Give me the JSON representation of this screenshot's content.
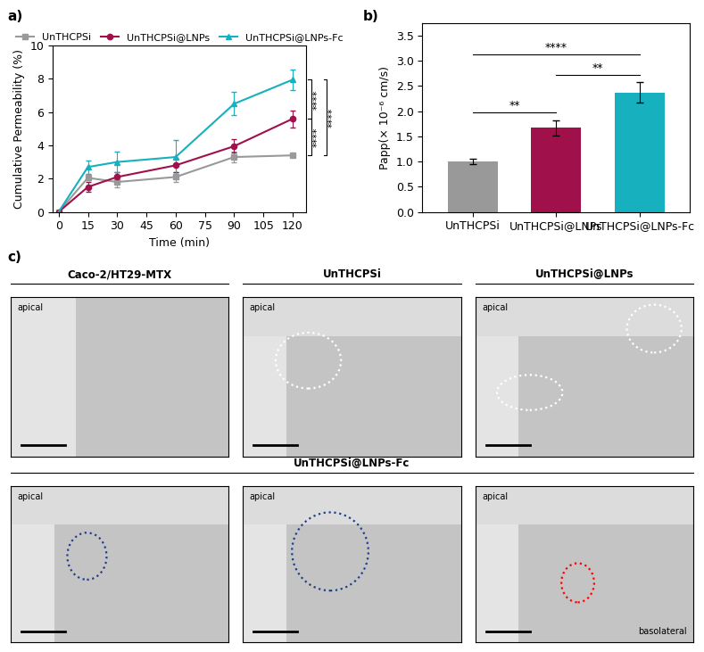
{
  "chart_data": [
    {
      "type": "line",
      "panel_label": "a)",
      "x_label": "Time (min)",
      "y_label": "Cumulative Permeability (%)",
      "x": [
        0,
        15,
        30,
        60,
        90,
        120
      ],
      "xlim": [
        -3,
        127
      ],
      "xticks": [
        0,
        15,
        30,
        45,
        60,
        75,
        90,
        105,
        120
      ],
      "ylim": [
        0,
        10
      ],
      "yticks": [
        0,
        2,
        4,
        6,
        8,
        10
      ],
      "grid": false,
      "legend": "upper center",
      "series": [
        {
          "name": "UnTHCPSi",
          "color": "#999999",
          "marker": "square",
          "values": [
            0,
            2.05,
            1.8,
            2.1,
            3.3,
            3.4
          ],
          "errors": [
            0,
            0.15,
            0.3,
            0.3,
            0.3,
            0.1
          ]
        },
        {
          "name": "UnTHCPSi@LNPs",
          "color": "#a0104a",
          "marker": "circle",
          "values": [
            0,
            1.5,
            2.1,
            2.8,
            3.95,
            5.6
          ],
          "errors": [
            0,
            0.3,
            0.3,
            0.4,
            0.4,
            0.5
          ]
        },
        {
          "name": "UnTHCPSi@LNPs-Fc",
          "color": "#17b0bf",
          "marker": "triangle",
          "values": [
            0,
            2.7,
            3.0,
            3.3,
            6.5,
            7.95
          ],
          "errors": [
            0,
            0.4,
            0.6,
            1.0,
            0.7,
            0.6
          ]
        }
      ],
      "annotations": [
        {
          "text": "****",
          "series": [
            "UnTHCPSi@LNPs",
            "UnTHCPSi@LNPs-Fc"
          ]
        },
        {
          "text": "****",
          "series": [
            "UnTHCPSi",
            "UnTHCPSi@LNPs"
          ]
        },
        {
          "text": "****",
          "series": [
            "UnTHCPSi",
            "UnTHCPSi@LNPs-Fc"
          ]
        }
      ]
    },
    {
      "type": "bar",
      "panel_label": "b)",
      "y_label": "Papp(× 10⁻⁶ cm/s)",
      "categories": [
        "UnTHCPSi",
        "UnTHCPSi@LNPs",
        "UnTHCPSi@LNPs-Fc"
      ],
      "values": [
        1.0,
        1.67,
        2.37
      ],
      "errors": [
        0.05,
        0.15,
        0.2
      ],
      "colors": [
        "#999999",
        "#a0104a",
        "#17b0bf"
      ],
      "ylim": [
        0,
        3.75
      ],
      "yticks": [
        0.0,
        0.5,
        1.0,
        1.5,
        2.0,
        2.5,
        3.0,
        3.5
      ],
      "grid": false,
      "annotations": [
        {
          "text": "**",
          "categories": [
            "UnTHCPSi",
            "UnTHCPSi@LNPs"
          ]
        },
        {
          "text": "**",
          "categories": [
            "UnTHCPSi@LNPs",
            "UnTHCPSi@LNPs-Fc"
          ]
        },
        {
          "text": "****",
          "categories": [
            "UnTHCPSi",
            "UnTHCPSi@LNPs-Fc"
          ]
        }
      ]
    }
  ],
  "micrographs": {
    "panel_label": "c)",
    "groups": [
      {
        "title": "Caco-2/HT29-MTX",
        "images": [
          [
            "apical"
          ]
        ]
      },
      {
        "title": "UnTHCPSi",
        "images": [
          [
            "apical"
          ]
        ]
      },
      {
        "title": "UnTHCPSi@LNPs",
        "images": [
          [
            "apical"
          ]
        ]
      },
      {
        "title": "UnTHCPSi@LNPs-Fc",
        "images": [
          [
            "apical"
          ],
          [
            "apical"
          ],
          [
            "apical",
            "basolateral"
          ]
        ]
      }
    ]
  }
}
